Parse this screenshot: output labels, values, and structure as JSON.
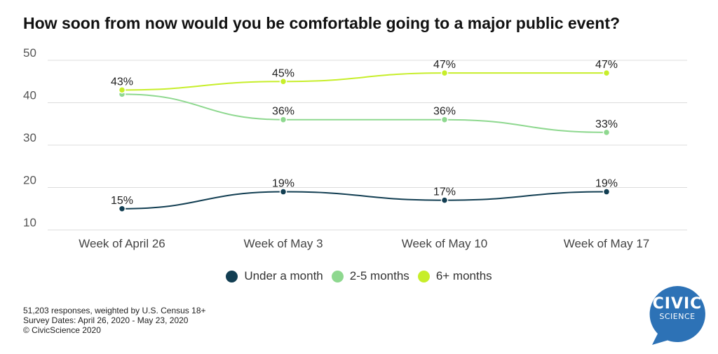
{
  "chart_data": {
    "type": "line",
    "title": "How soon from now would you be comfortable going to a major public event?",
    "categories": [
      "Week of April 26",
      "Week of May 3",
      "Week of May 10",
      "Week of May 17"
    ],
    "series": [
      {
        "name": "Under a month",
        "values": [
          15,
          19,
          17,
          19
        ],
        "labels": [
          "15%",
          "19%",
          "17%",
          "19%"
        ],
        "color": "#123e52"
      },
      {
        "name": "2-5 months",
        "values": [
          42,
          36,
          36,
          33
        ],
        "labels": [
          "",
          "36%",
          "36%",
          "33%"
        ],
        "color": "#8ed88f"
      },
      {
        "name": "6+ months",
        "values": [
          43,
          45,
          47,
          47
        ],
        "labels": [
          "43%",
          "45%",
          "47%",
          "47%"
        ],
        "color": "#c7ee2a"
      }
    ],
    "y_ticks": [
      10,
      20,
      30,
      40,
      50
    ],
    "ylim": [
      10,
      50
    ],
    "xlabel": "",
    "ylabel": "",
    "grid": true,
    "legend_position": "bottom"
  },
  "footnote": {
    "line1": "51,203 responses, weighted by U.S. Census 18+",
    "line2": "Survey Dates: April 26, 2020 - May 23, 2020",
    "line3": "© CivicScience 2020"
  },
  "logo": {
    "line1": "CIVIC",
    "line2": "SCIENCE",
    "color": "#2d72b6"
  }
}
